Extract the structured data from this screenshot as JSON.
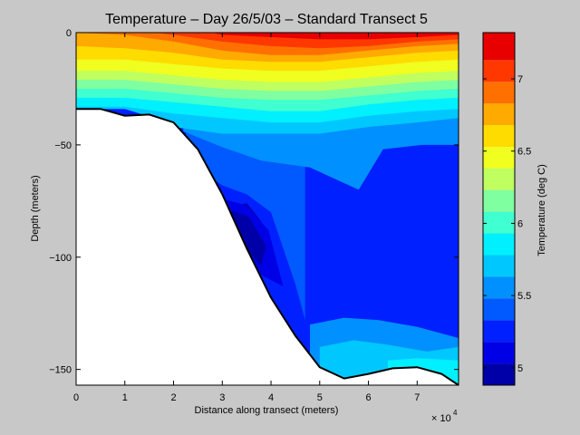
{
  "chart_data": {
    "type": "contour",
    "title": "Temperature – Day 26/5/03 – Standard Transect 5",
    "xlabel": "Distance along transect (meters)",
    "ylabel": "Depth (meters)",
    "x_multiplier_label": "× 10",
    "x_multiplier_exponent": "4",
    "xlim": [
      0,
      78500
    ],
    "ylim": [
      -157,
      0
    ],
    "x_ticks": [
      0,
      10000,
      20000,
      30000,
      40000,
      50000,
      60000,
      70000
    ],
    "x_tick_labels": [
      "0",
      "1",
      "2",
      "3",
      "4",
      "5",
      "6",
      "7"
    ],
    "y_ticks": [
      0,
      -50,
      -100,
      -150
    ],
    "y_tick_labels": [
      "0",
      "−50",
      "−100",
      "−150"
    ],
    "colorbar": {
      "label": "Temperature (deg C)",
      "range": [
        4.88,
        7.32
      ],
      "ticks": [
        5,
        5.5,
        6,
        6.5,
        7
      ],
      "tick_labels": [
        "5",
        "5.5",
        "6",
        "6.5",
        "7"
      ],
      "levels": [
        4.88,
        5.03,
        5.18,
        5.33,
        5.48,
        5.63,
        5.78,
        5.93,
        6.08,
        6.23,
        6.38,
        6.53,
        6.68,
        6.83,
        6.98,
        7.13,
        7.32
      ],
      "colors": [
        "#0000a8",
        "#0000e6",
        "#0020ff",
        "#005aff",
        "#0090ff",
        "#00c8ff",
        "#00f0ff",
        "#40ffd0",
        "#80ffa0",
        "#bfff60",
        "#f0ff20",
        "#ffdc00",
        "#ffaa00",
        "#ff7000",
        "#ff3800",
        "#e80000",
        "#b40000"
      ]
    },
    "grid": false,
    "bathymetry": {
      "distance": [
        0,
        5000,
        10000,
        15000,
        20000,
        25000,
        30000,
        35000,
        40000,
        45000,
        50000,
        55000,
        60000,
        65000,
        70000,
        75000,
        78500
      ],
      "depth": [
        -34,
        -34,
        -37,
        -36.5,
        -40,
        -52,
        -72,
        -96,
        -118,
        -135,
        -149,
        -154,
        -152,
        -149.5,
        -149,
        -152,
        -157
      ]
    },
    "contour_bands": [
      {
        "level": 5.18,
        "distance": [
          30500,
          35000,
          38000,
          40000,
          42000
        ],
        "depth": [
          -78,
          -76,
          -84,
          -100,
          -112
        ]
      },
      {
        "level": 5.33,
        "distance": [
          22500,
          30000,
          35000,
          40000,
          45000,
          47000
        ],
        "depth": [
          -57,
          -68,
          -72,
          -80,
          -112,
          -128
        ]
      },
      {
        "level": 5.48,
        "distance": [
          22000,
          30000,
          38000,
          48000,
          58000,
          63000,
          71000,
          78500
        ],
        "depth": [
          -44,
          -51,
          -57,
          -60,
          -70,
          -52,
          -50,
          -50
        ]
      },
      {
        "level": 5.63,
        "distance": [
          0,
          10000,
          16000,
          20000,
          30000,
          40000,
          50000,
          60000,
          70000,
          78500
        ],
        "depth": [
          -34,
          -34,
          -38,
          -42,
          -45,
          -45,
          -45,
          -42,
          -40,
          -38
        ]
      },
      {
        "level": 5.78,
        "distance": [
          0,
          10000,
          20000,
          30000,
          40000,
          50000,
          60000,
          70000,
          78500
        ],
        "depth": [
          -33,
          -33,
          -36,
          -38,
          -40,
          -40,
          -37,
          -35,
          -34
        ]
      },
      {
        "level": 5.93,
        "distance": [
          0,
          10000,
          20000,
          30000,
          40000,
          50000,
          60000,
          70000,
          78500
        ],
        "depth": [
          -29,
          -29,
          -31,
          -33,
          -35,
          -35,
          -32,
          -30,
          -29
        ]
      },
      {
        "level": 6.08,
        "distance": [
          0,
          10000,
          20000,
          30000,
          40000,
          50000,
          60000,
          70000,
          78500
        ],
        "depth": [
          -25,
          -25,
          -27,
          -29,
          -30,
          -30,
          -28,
          -26,
          -25
        ]
      },
      {
        "level": 6.23,
        "distance": [
          0,
          10000,
          20000,
          30000,
          40000,
          50000,
          60000,
          70000,
          78500
        ],
        "depth": [
          -21,
          -21,
          -23,
          -25,
          -26,
          -26,
          -24,
          -22,
          -21
        ]
      },
      {
        "level": 6.38,
        "distance": [
          0,
          10000,
          20000,
          30000,
          40000,
          50000,
          60000,
          70000,
          78500
        ],
        "depth": [
          -17,
          -17,
          -19,
          -21,
          -22,
          -22,
          -20,
          -18,
          -17
        ]
      },
      {
        "level": 6.53,
        "distance": [
          0,
          10000,
          20000,
          30000,
          40000,
          50000,
          60000,
          70000,
          78500
        ],
        "depth": [
          -12,
          -12,
          -14,
          -16,
          -17,
          -17,
          -15,
          -13,
          -12
        ]
      },
      {
        "level": 6.68,
        "distance": [
          0,
          10000,
          20000,
          30000,
          40000,
          50000,
          60000,
          70000,
          78500
        ],
        "depth": [
          -6,
          -7,
          -9,
          -12,
          -13,
          -13,
          -11,
          -9,
          -8
        ]
      },
      {
        "level": 6.83,
        "distance": [
          0,
          10000,
          20000,
          30000,
          40000,
          50000,
          60000,
          70000,
          78500
        ],
        "depth": [
          0,
          -1,
          -4,
          -8,
          -10,
          -10,
          -8,
          -6,
          -5
        ]
      },
      {
        "level": 6.98,
        "distance": [
          16000,
          20000,
          30000,
          40000,
          50000,
          60000,
          70000,
          78500
        ],
        "depth": [
          0,
          -1,
          -4,
          -6,
          -7,
          -6,
          -4,
          -3
        ]
      },
      {
        "level": 7.13,
        "distance": [
          28000,
          30000,
          40000,
          50000,
          60000,
          70000,
          78500
        ],
        "depth": [
          0,
          -1,
          -2,
          -3,
          -3,
          -2,
          -1
        ]
      }
    ]
  }
}
